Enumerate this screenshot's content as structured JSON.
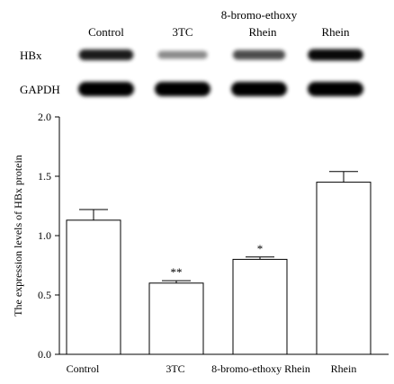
{
  "blot": {
    "headers": [
      "Control",
      "3TC",
      "8-bromo-ethoxy",
      "Rhein",
      "Rhein"
    ],
    "rows": [
      {
        "label": "HBx",
        "band_intensity": [
          0.85,
          0.28,
          0.6,
          0.95
        ]
      },
      {
        "label": "GAPDH",
        "band_intensity": [
          1.0,
          1.0,
          1.0,
          1.0
        ]
      }
    ]
  },
  "chart_data": {
    "type": "bar",
    "categories": [
      "Control",
      "3TC",
      "8-bromo-ethoxy Rhein",
      "Rhein"
    ],
    "values": [
      1.13,
      0.6,
      0.8,
      1.45
    ],
    "errors": [
      0.09,
      0.02,
      0.02,
      0.09
    ],
    "annotations": [
      "",
      "**",
      "*",
      ""
    ],
    "ylabel": "The expression levels of HBx protein",
    "ylim": [
      0,
      2.0
    ],
    "yticks": [
      "0.0",
      "0.5",
      "1.0",
      "1.5",
      "2.0"
    ],
    "ytick_values": [
      0,
      0.5,
      1.0,
      1.5,
      2.0
    ],
    "grid": false
  }
}
